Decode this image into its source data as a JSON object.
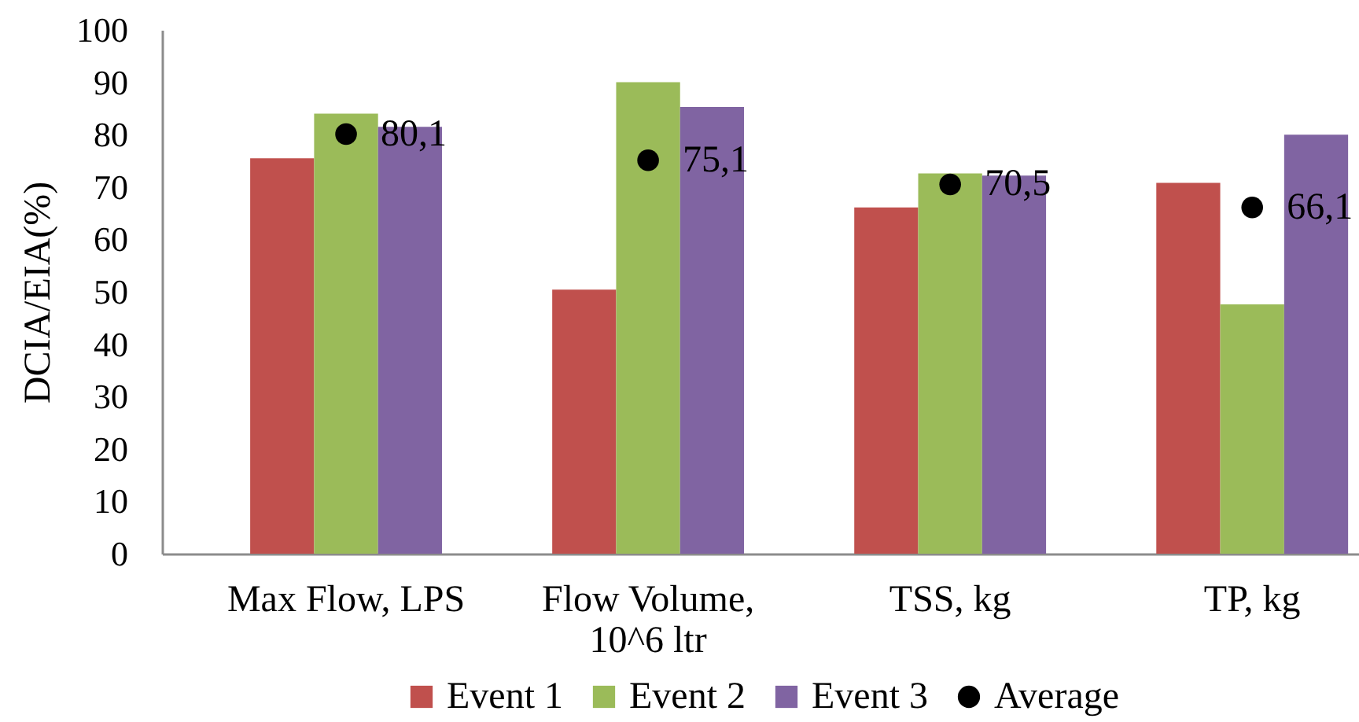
{
  "chart_data": {
    "type": "bar",
    "ylabel": "DCIA/EIA(%)",
    "categories": [
      "Max Flow, LPS",
      "Flow Volume, 10^6 ltr",
      "TSS, kg",
      "TP,  kg"
    ],
    "series": [
      {
        "name": "Event 1",
        "color": "#c0504d",
        "values": [
          75.5,
          50.4,
          66.1,
          70.8
        ]
      },
      {
        "name": "Event 2",
        "color": "#9bbb59",
        "values": [
          84.0,
          90.0,
          72.6,
          47.6
        ]
      },
      {
        "name": "Event 3",
        "color": "#8064a2",
        "values": [
          81.5,
          85.3,
          72.2,
          80.0
        ]
      },
      {
        "name": "Average",
        "type": "scatter",
        "marker": "circle",
        "color": "#000000",
        "values": [
          80.1,
          75.1,
          70.5,
          66.1
        ],
        "value_labels": [
          "80,1",
          "75,1",
          "70,5",
          "66,1"
        ]
      }
    ],
    "ylim": [
      0,
      100
    ],
    "yticks": [
      0,
      10,
      20,
      30,
      40,
      50,
      60,
      70,
      80,
      90,
      100
    ],
    "legend": "bottom"
  }
}
